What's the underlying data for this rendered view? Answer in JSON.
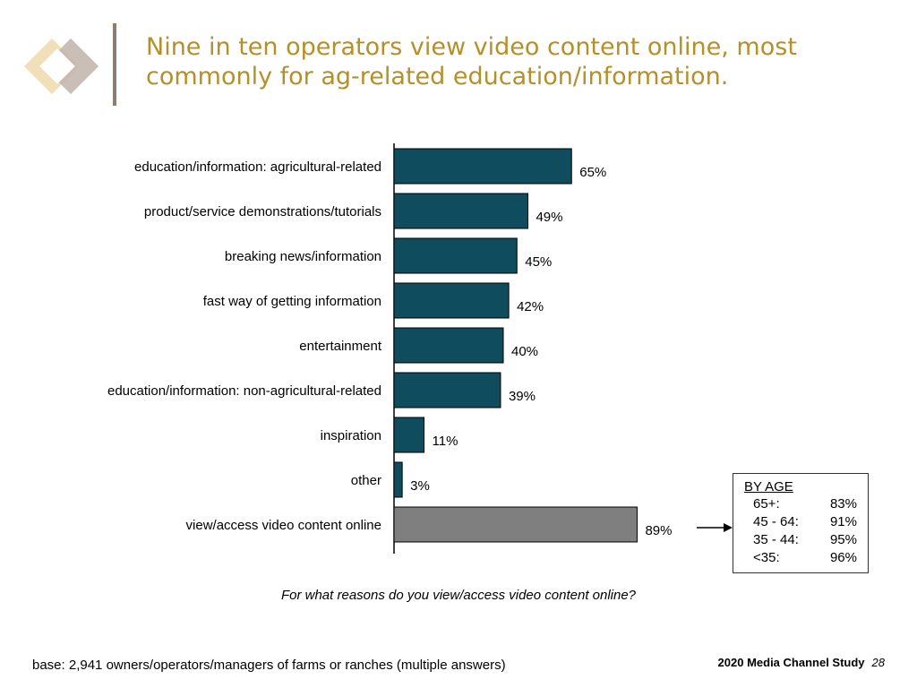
{
  "title_lines": [
    "Nine in ten operators view video content online, most",
    "commonly for ag-related education/information."
  ],
  "chart_data": {
    "type": "bar",
    "orientation": "horizontal",
    "categories": [
      "education/information: agricultural-related",
      "product/service demonstrations/tutorials",
      "breaking news/information",
      "fast way of getting information",
      "entertainment",
      "education/information: non-agricultural-related",
      "inspiration",
      "other",
      "view/access video content online"
    ],
    "values": [
      65,
      49,
      45,
      42,
      40,
      39,
      11,
      3,
      89
    ],
    "value_labels": [
      "65%",
      "49%",
      "45%",
      "42%",
      "40%",
      "39%",
      "11%",
      "3%",
      "89%"
    ],
    "bar_colors": [
      "#0e4c5e",
      "#0e4c5e",
      "#0e4c5e",
      "#0e4c5e",
      "#0e4c5e",
      "#0e4c5e",
      "#0e4c5e",
      "#0e4c5e",
      "#7f7f7f"
    ],
    "xlim": [
      0,
      100
    ],
    "grid": false,
    "question": "For what reasons do you view/access video content online?"
  },
  "by_age": {
    "heading": "BY AGE",
    "rows": [
      {
        "label": "65+:",
        "value": "83%"
      },
      {
        "label": "45 - 64:",
        "value": "91%"
      },
      {
        "label": "35 - 44:",
        "value": "95%"
      },
      {
        "label": "<35:",
        "value": "96%"
      }
    ]
  },
  "base_note": "base:  2,941 owners/operators/managers of farms or ranches (multiple answers)",
  "footer": {
    "study": "2020 Media Channel Study",
    "page": "28"
  }
}
